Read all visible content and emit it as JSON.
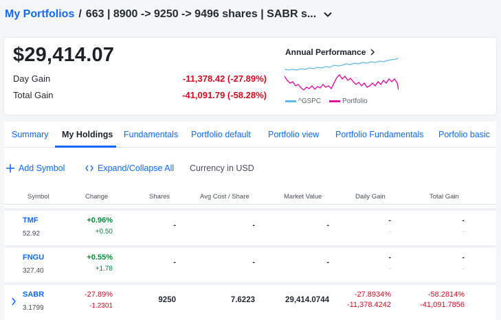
{
  "breadcrumb": {
    "root": "My Portfolios",
    "separator": "/",
    "title": "663 | 8900 -> 9250 -> 9496 shares | SABR s..."
  },
  "summary": {
    "total_value": "$29,414.07",
    "day_gain_label": "Day Gain",
    "day_gain_value": "-11,378.42 (-27.89%)",
    "total_gain_label": "Total Gain",
    "total_gain_value": "-41,091.79 (-58.28%)",
    "performance_title": "Annual Performance",
    "legend": [
      {
        "label": "^GSPC",
        "color": "#5fb8ea"
      },
      {
        "label": "Portfolio",
        "color": "#e0119d"
      }
    ]
  },
  "tabs": [
    {
      "label": "Summary",
      "active": false
    },
    {
      "label": "My Holdings",
      "active": true
    },
    {
      "label": "Fundamentals",
      "active": false
    },
    {
      "label": "Portfolio default",
      "active": false
    },
    {
      "label": "Portfolio view",
      "active": false
    },
    {
      "label": "Portfolio Fundamentals",
      "active": false
    },
    {
      "label": "Porfolio basic",
      "active": false
    }
  ],
  "actions": {
    "add_symbol": "Add Symbol",
    "add_icon": "plus-icon",
    "expand_collapse": "Expand/Collapse All",
    "expand_icon": "code-brackets-icon",
    "currency": "Currency in USD"
  },
  "table": {
    "headers": [
      "Symbol",
      "Change",
      "Shares",
      "Avg Cost / Share",
      "Market Value",
      "Daily Gain",
      "Total Gain"
    ],
    "rows": [
      {
        "symbol": "TMF",
        "price": "52.92",
        "change_pct": "+0.96%",
        "change_abs": "+0.50",
        "shares": "-",
        "avg_cost": "-",
        "market_value": "-",
        "daily_gain": "-",
        "daily_gain_sub": "-",
        "total_gain": "-",
        "total_gain_sub": "-"
      },
      {
        "symbol": "FNGU",
        "price": "327.40",
        "change_pct": "+0.55%",
        "change_abs": "+1.78",
        "shares": "-",
        "avg_cost": "-",
        "market_value": "-",
        "daily_gain": "-",
        "daily_gain_sub": "-",
        "total_gain": "-",
        "total_gain_sub": "-"
      },
      {
        "symbol": "SABR",
        "price": "3.1799",
        "change_pct": "-27.89%",
        "change_abs": "-1.2301",
        "shares": "9250",
        "avg_cost": "7.6223",
        "market_value": "29,414.0744",
        "daily_gain": "-27.8934%",
        "daily_gain_sub": "-11,378.4242",
        "total_gain": "-58.2814%",
        "total_gain_sub": "-41,091.7856"
      }
    ]
  },
  "colors": {
    "accent": "#0f69ff",
    "positive": "#008a3b",
    "negative": "#d60a22"
  }
}
